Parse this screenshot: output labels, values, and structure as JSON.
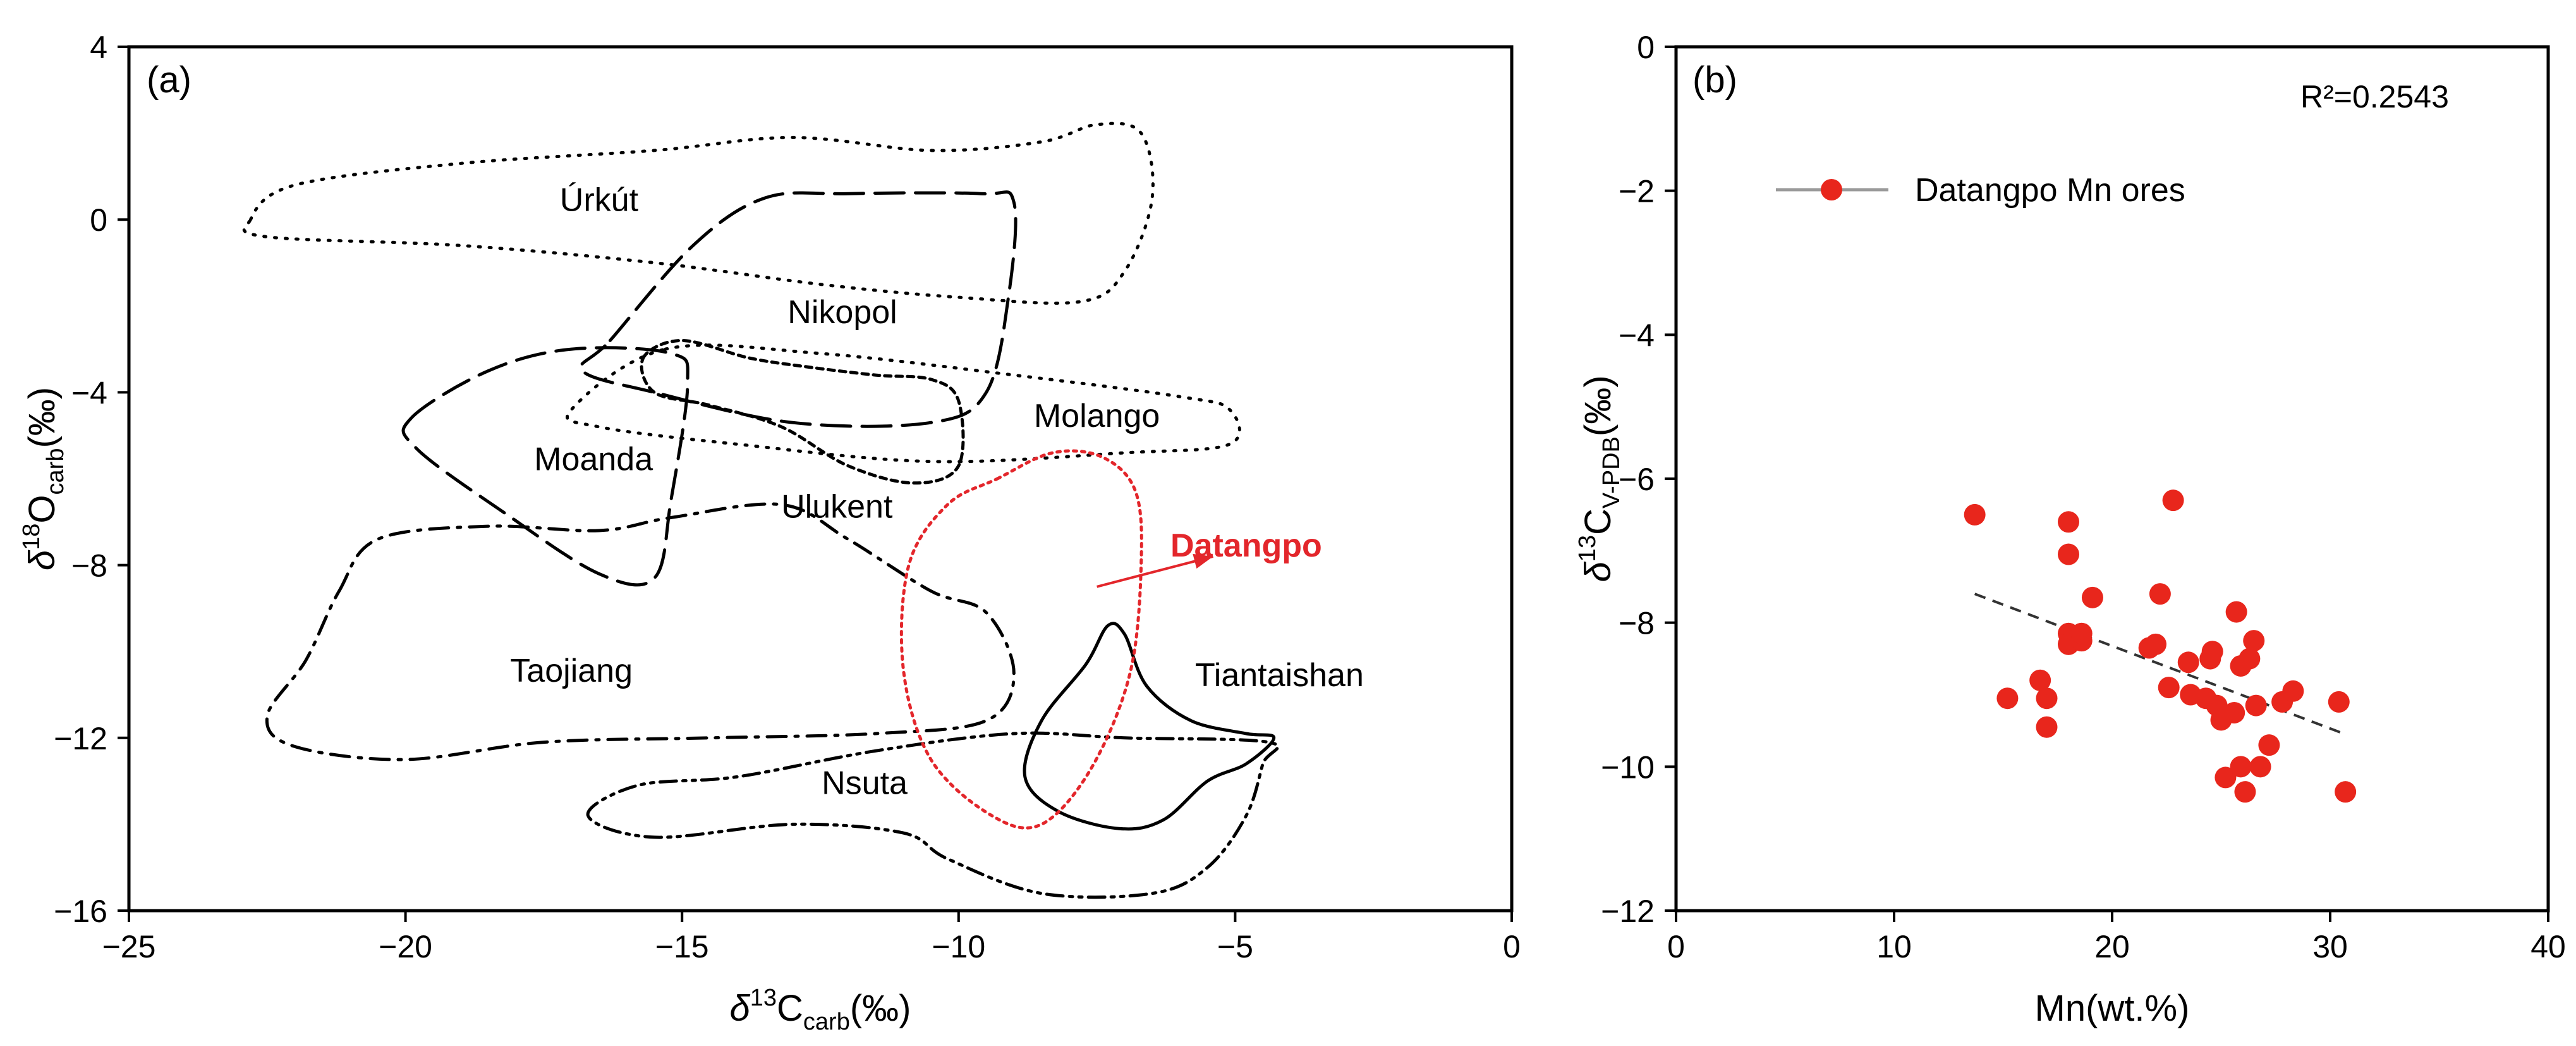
{
  "colors": {
    "axis": "#000000",
    "highlight": "#e3262b",
    "marker": "#e8261c",
    "legend_line": "#9a9a9a",
    "fit_line": "#333333"
  },
  "chart_data": [
    {
      "panel": "(a)",
      "type": "region-outline",
      "xlabel": {
        "symbol": "δ",
        "sup": "13",
        "main": "C",
        "sub": "carb",
        "unit": "(‰)"
      },
      "ylabel": {
        "symbol": "δ",
        "sup": "18",
        "main": "O",
        "sub": "carb",
        "unit": "(‰)"
      },
      "xlim": [
        -25,
        0
      ],
      "ylim": [
        -16,
        4
      ],
      "x_ticks": [
        -25,
        -20,
        -15,
        -10,
        -5,
        0
      ],
      "x_tick_labels": [
        "−25",
        "−20",
        "−15",
        "−10",
        "−5",
        "0"
      ],
      "y_ticks": [
        4,
        0,
        -4,
        -8,
        -12,
        -16
      ],
      "y_tick_labels": [
        "4",
        "0",
        "−4",
        "−8",
        "−12",
        "−16"
      ],
      "regions": [
        {
          "name": "Úrkút",
          "dash": "dotted",
          "label_at": [
            -16.5,
            0.2
          ],
          "outline": [
            [
              -22.8,
              0.0
            ],
            [
              -22.0,
              0.8
            ],
            [
              -19.0,
              1.3
            ],
            [
              -15.5,
              1.6
            ],
            [
              -13.0,
              1.9
            ],
            [
              -10.5,
              1.6
            ],
            [
              -8.5,
              1.8
            ],
            [
              -7.5,
              2.2
            ],
            [
              -6.7,
              2.0
            ],
            [
              -6.5,
              0.5
            ],
            [
              -7.0,
              -1.2
            ],
            [
              -7.8,
              -1.9
            ],
            [
              -10.0,
              -1.8
            ],
            [
              -12.5,
              -1.5
            ],
            [
              -15.5,
              -1.0
            ],
            [
              -19.0,
              -0.6
            ],
            [
              -22.5,
              -0.4
            ],
            [
              -22.8,
              0.0
            ]
          ]
        },
        {
          "name": "Nikopol",
          "dash": "long-dash",
          "label_at": [
            -12.1,
            -2.4
          ],
          "outline": [
            [
              -16.3,
              -2.8
            ],
            [
              -14.8,
              -0.6
            ],
            [
              -13.5,
              0.5
            ],
            [
              -12.0,
              0.6
            ],
            [
              -9.6,
              0.6
            ],
            [
              -9.0,
              0.4
            ],
            [
              -9.1,
              -1.8
            ],
            [
              -9.5,
              -4.0
            ],
            [
              -10.5,
              -4.7
            ],
            [
              -13.0,
              -4.7
            ],
            [
              -15.5,
              -4.0
            ],
            [
              -16.8,
              -3.5
            ],
            [
              -16.3,
              -2.8
            ]
          ]
        },
        {
          "name": "Molango",
          "dash": "dotted",
          "label_at": [
            -7.5,
            -4.8
          ],
          "outline": [
            [
              -15.3,
              -3.0
            ],
            [
              -12.5,
              -3.1
            ],
            [
              -9.0,
              -3.6
            ],
            [
              -6.0,
              -4.1
            ],
            [
              -5.1,
              -4.4
            ],
            [
              -5.1,
              -5.2
            ],
            [
              -7.0,
              -5.4
            ],
            [
              -10.5,
              -5.6
            ],
            [
              -14.0,
              -5.2
            ],
            [
              -16.5,
              -4.8
            ],
            [
              -17.0,
              -4.4
            ],
            [
              -15.3,
              -3.0
            ]
          ]
        },
        {
          "name": "Moanda",
          "dash": "long-dash",
          "label_at": [
            -16.6,
            -5.8
          ],
          "outline": [
            [
              -19.9,
              -4.6
            ],
            [
              -18.5,
              -3.5
            ],
            [
              -17.0,
              -3.0
            ],
            [
              -15.2,
              -3.1
            ],
            [
              -14.9,
              -3.8
            ],
            [
              -15.2,
              -6.5
            ],
            [
              -15.5,
              -8.3
            ],
            [
              -16.5,
              -8.2
            ],
            [
              -18.2,
              -6.8
            ],
            [
              -19.8,
              -5.3
            ],
            [
              -19.9,
              -4.6
            ]
          ]
        },
        {
          "name": "Ulukent",
          "dash": "short-dash",
          "label_at": [
            -12.2,
            -6.9
          ],
          "outline": [
            [
              -15.7,
              -3.2
            ],
            [
              -15.0,
              -2.8
            ],
            [
              -13.8,
              -3.2
            ],
            [
              -12.8,
              -3.4
            ],
            [
              -11.5,
              -3.6
            ],
            [
              -10.5,
              -3.7
            ],
            [
              -10.0,
              -4.2
            ],
            [
              -10.0,
              -5.7
            ],
            [
              -10.8,
              -6.1
            ],
            [
              -12.0,
              -5.7
            ],
            [
              -13.2,
              -4.8
            ],
            [
              -14.5,
              -4.3
            ],
            [
              -15.5,
              -4.0
            ],
            [
              -15.7,
              -3.2
            ]
          ]
        },
        {
          "name": "Taojiang",
          "dash": "dash-dot",
          "label_at": [
            -17.0,
            -10.7
          ],
          "outline": [
            [
              -21.2,
              -8.6
            ],
            [
              -20.5,
              -7.4
            ],
            [
              -18.5,
              -7.1
            ],
            [
              -16.5,
              -7.2
            ],
            [
              -15.2,
              -6.9
            ],
            [
              -13.2,
              -6.6
            ],
            [
              -12.0,
              -7.4
            ],
            [
              -10.5,
              -8.6
            ],
            [
              -9.5,
              -9.1
            ],
            [
              -9.0,
              -10.5
            ],
            [
              -9.5,
              -11.6
            ],
            [
              -11.5,
              -11.9
            ],
            [
              -14.5,
              -12.0
            ],
            [
              -17.5,
              -12.1
            ],
            [
              -20.0,
              -12.5
            ],
            [
              -22.0,
              -12.2
            ],
            [
              -22.5,
              -11.5
            ],
            [
              -21.8,
              -10.2
            ],
            [
              -21.2,
              -8.6
            ]
          ]
        },
        {
          "name": "Nsuta",
          "dash": "dash-dot-dot",
          "label_at": [
            -11.7,
            -13.3
          ],
          "outline": [
            [
              -16.7,
              -13.8
            ],
            [
              -15.8,
              -13.1
            ],
            [
              -14.0,
              -12.9
            ],
            [
              -11.5,
              -12.3
            ],
            [
              -9.0,
              -11.9
            ],
            [
              -7.0,
              -12.0
            ],
            [
              -4.4,
              -12.1
            ],
            [
              -4.5,
              -12.6
            ],
            [
              -4.8,
              -13.8
            ],
            [
              -5.5,
              -15.0
            ],
            [
              -6.5,
              -15.6
            ],
            [
              -8.5,
              -15.6
            ],
            [
              -10.2,
              -14.8
            ],
            [
              -11.0,
              -14.2
            ],
            [
              -13.0,
              -14.0
            ],
            [
              -15.5,
              -14.3
            ],
            [
              -16.7,
              -13.8
            ]
          ]
        },
        {
          "name": "Tiantaishan",
          "dash": "solid",
          "label_at": [
            -4.2,
            -10.8
          ],
          "outline": [
            [
              -7.3,
              -9.4
            ],
            [
              -7.0,
              -9.6
            ],
            [
              -6.6,
              -10.8
            ],
            [
              -5.8,
              -11.6
            ],
            [
              -4.8,
              -11.9
            ],
            [
              -4.3,
              -12.0
            ],
            [
              -4.8,
              -12.6
            ],
            [
              -5.5,
              -13.0
            ],
            [
              -6.3,
              -13.9
            ],
            [
              -7.1,
              -14.1
            ],
            [
              -8.2,
              -13.7
            ],
            [
              -8.8,
              -12.9
            ],
            [
              -8.5,
              -11.6
            ],
            [
              -7.7,
              -10.3
            ],
            [
              -7.3,
              -9.4
            ]
          ]
        },
        {
          "name": "Datangpo",
          "dash": "dotted-red",
          "highlight": true,
          "label_at": [
            -4.8,
            -7.8
          ],
          "outline": [
            [
              -9.3,
              -6.0
            ],
            [
              -8.3,
              -5.4
            ],
            [
              -7.4,
              -5.5
            ],
            [
              -6.8,
              -6.3
            ],
            [
              -6.7,
              -8.0
            ],
            [
              -6.9,
              -10.5
            ],
            [
              -7.6,
              -12.7
            ],
            [
              -8.5,
              -14.0
            ],
            [
              -9.4,
              -13.8
            ],
            [
              -10.5,
              -12.5
            ],
            [
              -11.0,
              -10.4
            ],
            [
              -10.9,
              -8.0
            ],
            [
              -10.2,
              -6.6
            ],
            [
              -9.3,
              -6.0
            ]
          ]
        }
      ],
      "annotation_arrow": {
        "from": [
          -7.5,
          -8.5
        ],
        "to": [
          -5.4,
          -7.8
        ]
      }
    },
    {
      "panel": "(b)",
      "type": "scatter",
      "xlabel": "Mn(wt.%)",
      "ylabel": {
        "symbol": "δ",
        "sup": "13",
        "main": "C",
        "sub": "V-PDB",
        "unit": "(‰)"
      },
      "xlim": [
        0,
        40
      ],
      "ylim": [
        -12,
        0
      ],
      "x_ticks": [
        0,
        10,
        20,
        30,
        40
      ],
      "x_tick_labels": [
        "0",
        "10",
        "20",
        "30",
        "40"
      ],
      "y_ticks": [
        0,
        -2,
        -4,
        -6,
        -8,
        -10,
        -12
      ],
      "y_tick_labels": [
        "0",
        "−2",
        "−4",
        "−6",
        "−8",
        "−10",
        "−12"
      ],
      "annotation": "R²=0.2543",
      "legend": {
        "label": "Datangpo Mn ores",
        "position": "top-left"
      },
      "series": [
        {
          "name": "Datangpo Mn ores",
          "points": [
            [
              13.7,
              -6.5
            ],
            [
              15.2,
              -9.05
            ],
            [
              16.7,
              -8.8
            ],
            [
              17.0,
              -9.05
            ],
            [
              17.0,
              -9.45
            ],
            [
              18.0,
              -6.6
            ],
            [
              18.0,
              -7.05
            ],
            [
              18.0,
              -8.15
            ],
            [
              18.0,
              -8.3
            ],
            [
              18.6,
              -8.25
            ],
            [
              18.6,
              -8.15
            ],
            [
              19.1,
              -7.65
            ],
            [
              21.7,
              -8.35
            ],
            [
              22.0,
              -8.3
            ],
            [
              22.2,
              -7.6
            ],
            [
              22.6,
              -8.9
            ],
            [
              22.8,
              -6.3
            ],
            [
              23.5,
              -8.55
            ],
            [
              23.6,
              -9.0
            ],
            [
              24.3,
              -9.05
            ],
            [
              24.5,
              -8.5
            ],
            [
              24.6,
              -8.4
            ],
            [
              24.8,
              -9.15
            ],
            [
              25.0,
              -9.35
            ],
            [
              25.2,
              -10.15
            ],
            [
              25.6,
              -9.25
            ],
            [
              25.7,
              -7.85
            ],
            [
              25.9,
              -8.6
            ],
            [
              25.9,
              -10.0
            ],
            [
              26.1,
              -10.35
            ],
            [
              26.3,
              -8.5
            ],
            [
              26.5,
              -8.25
            ],
            [
              26.6,
              -9.15
            ],
            [
              26.8,
              -10.0
            ],
            [
              27.2,
              -9.7
            ],
            [
              27.8,
              -9.1
            ],
            [
              28.3,
              -8.95
            ],
            [
              30.4,
              -9.1
            ],
            [
              30.7,
              -10.35
            ]
          ]
        }
      ],
      "fit_line": {
        "x": [
          13.7,
          30.7
        ],
        "y": [
          -7.6,
          -9.55
        ]
      }
    }
  ]
}
